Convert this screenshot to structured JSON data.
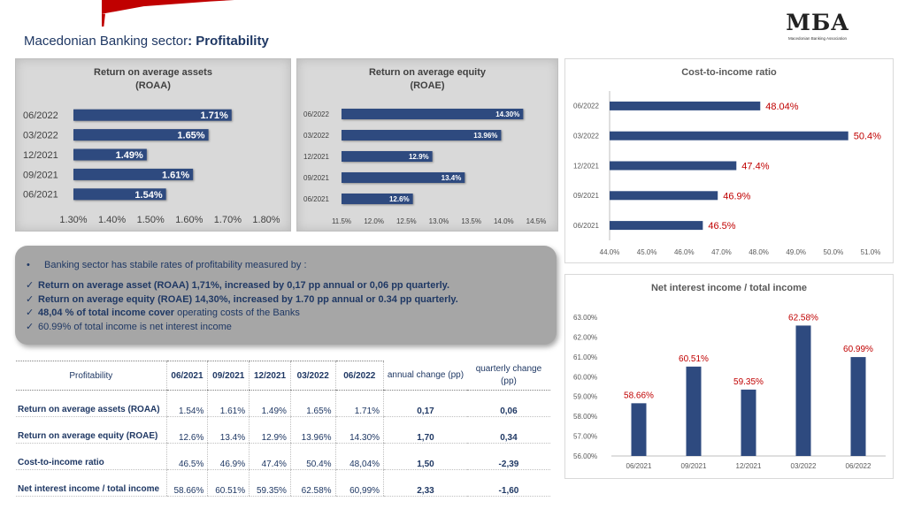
{
  "title": {
    "prefix": "Macedonian Banking sector",
    "sep": ": ",
    "bold": "Profitability"
  },
  "logo": {
    "mark": "MБA",
    "sub": "Macedonian Banking Association"
  },
  "colors": {
    "bar": "#2e4a7f",
    "bar_light_label": "#ffffff",
    "accent_red": "#c00000",
    "title_blue": "#1f3864"
  },
  "chart_data": [
    {
      "id": "roaa",
      "type": "bar",
      "orientation": "horizontal",
      "title": "Return on average assets (ROAA)",
      "title_lines": [
        "Return on average assets",
        "(ROAA)"
      ],
      "categories": [
        "06/2022",
        "03/2022",
        "12/2021",
        "09/2021",
        "06/2021"
      ],
      "values": [
        1.71,
        1.65,
        1.49,
        1.61,
        1.54
      ],
      "labels": [
        "1.71%",
        "1.65%",
        "1.49%",
        "1.61%",
        "1.54%"
      ],
      "xlim": [
        1.3,
        1.8
      ],
      "ticks": [
        "1.30%",
        "1.40%",
        "1.50%",
        "1.60%",
        "1.70%",
        "1.80%"
      ],
      "grid": false
    },
    {
      "id": "roae",
      "type": "bar",
      "orientation": "horizontal",
      "title": "Return on average equity (ROAE)",
      "title_lines": [
        "Return on average equity",
        "(ROAE)"
      ],
      "categories": [
        "06/2022",
        "03/2022",
        "12/2021",
        "09/2021",
        "06/2021"
      ],
      "values": [
        14.3,
        13.96,
        12.9,
        13.4,
        12.6
      ],
      "labels": [
        "14.30%",
        "13.96%",
        "12.9%",
        "13.4%",
        "12.6%"
      ],
      "xlim": [
        11.5,
        14.5
      ],
      "ticks": [
        "11.5%",
        "12.0%",
        "12.5%",
        "13.0%",
        "13.5%",
        "14.0%",
        "14.5%"
      ],
      "grid": false
    },
    {
      "id": "cti",
      "type": "bar",
      "orientation": "horizontal",
      "title": "Cost-to-income ratio",
      "title_lines": [
        "Cost-to-income ratio"
      ],
      "categories": [
        "06/2022",
        "03/2022",
        "12/2021",
        "09/2021",
        "06/2021"
      ],
      "values": [
        48.04,
        50.4,
        47.4,
        46.9,
        46.5
      ],
      "labels": [
        "48.04%",
        "50.4%",
        "47.4%",
        "46.9%",
        "46.5%"
      ],
      "xlim": [
        44.0,
        51.0
      ],
      "ticks": [
        "44.0%",
        "45.0%",
        "46.0%",
        "47.0%",
        "48.0%",
        "49.0%",
        "50.0%",
        "51.0%"
      ],
      "grid": false
    },
    {
      "id": "nii",
      "type": "bar",
      "orientation": "vertical",
      "title": "Net interest income / total income",
      "title_lines": [
        "Net interest income / total income"
      ],
      "categories": [
        "06/2021",
        "09/2021",
        "12/2021",
        "03/2022",
        "06/2022"
      ],
      "values": [
        58.66,
        60.51,
        59.35,
        62.58,
        60.99
      ],
      "labels": [
        "58.66%",
        "60.51%",
        "59.35%",
        "62.58%",
        "60.99%"
      ],
      "ylim": [
        56.0,
        63.0
      ],
      "ticks": [
        "56.00%",
        "57.00%",
        "58.00%",
        "59.00%",
        "60.00%",
        "61.00%",
        "62.00%",
        "63.00%"
      ],
      "grid": false
    }
  ],
  "summary": {
    "bullet_char": "•",
    "bullet": "Banking sector has stabile rates of profitability measured by :",
    "check_char": "✓",
    "items": [
      {
        "bold": "Return on average asset (ROAA) 1,71%, increased by 0,17 pp annual or 0,06 pp quarterly.",
        "rest": ""
      },
      {
        "bold": "Return on average equity (ROAE) 14,30%, increased by 1.70 pp annual  or 0.34 pp quarterly.",
        "rest": ""
      },
      {
        "bold": "48,04 % of total income cover",
        "rest": " operating costs of the Banks"
      },
      {
        "bold": "",
        "rest": "60.99% of total income is net interest income"
      }
    ]
  },
  "table": {
    "corner": "Profitability",
    "periods": [
      "06/2021",
      "09/2021",
      "12/2021",
      "03/2022",
      "06/2022"
    ],
    "annual": "annual change (pp)",
    "quarterly": "quarterly change (pp)",
    "rows": [
      {
        "label": "Return on average assets (ROAA)",
        "values": [
          "1.54%",
          "1.61%",
          "1.49%",
          "1.65%",
          "1.71%"
        ],
        "annual": "0,17",
        "quarterly": "0,06"
      },
      {
        "label": "Return on average equity (ROAE)",
        "values": [
          "12.6%",
          "13.4%",
          "12.9%",
          "13.96%",
          "14.30%"
        ],
        "annual": "1,70",
        "quarterly": "0,34"
      },
      {
        "label": "Cost-to-income ratio",
        "values": [
          "46.5%",
          "46.9%",
          "47.4%",
          "50.4%",
          "48,04%"
        ],
        "annual": "1,50",
        "quarterly": "-2,39"
      },
      {
        "label": "Net interest income / total income",
        "values": [
          "58.66%",
          "60.51%",
          "59.35%",
          "62.58%",
          "60,99%"
        ],
        "annual": "2,33",
        "quarterly": "-1,60"
      }
    ]
  }
}
